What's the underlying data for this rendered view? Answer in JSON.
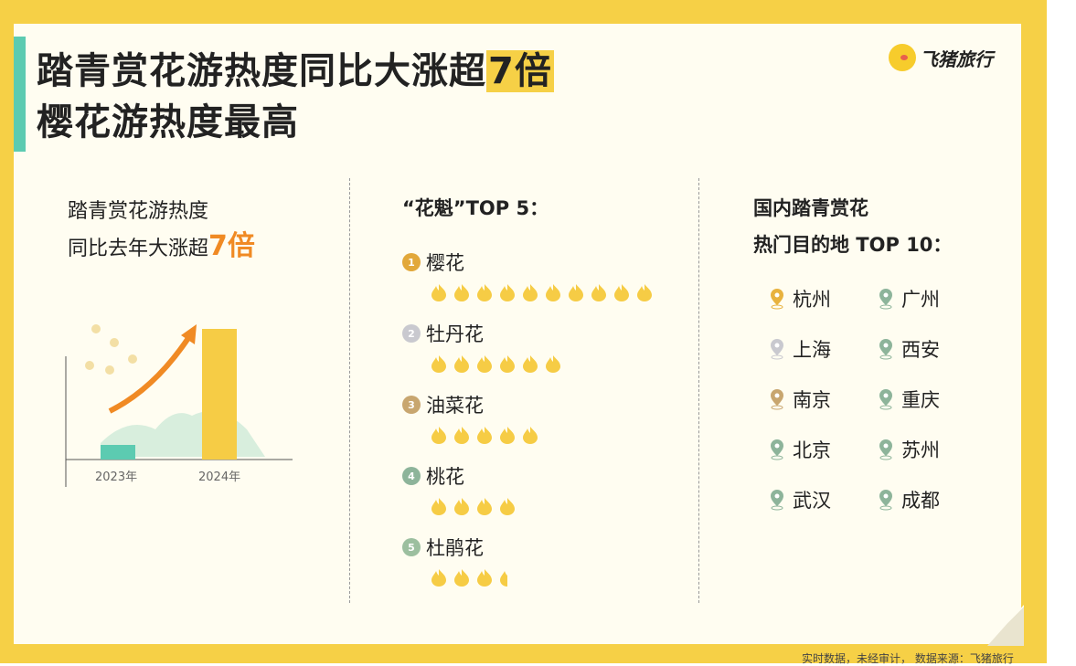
{
  "title": {
    "line1_prefix": "踏青赏花游热度同比大涨超",
    "line1_highlight": "7倍",
    "line2": "樱花游热度最高"
  },
  "brand": {
    "name": "飞猪旅行"
  },
  "colors": {
    "background": "#f6d046",
    "card": "#fffdf1",
    "accent": "#5ccbb1",
    "highlight": "#f08a24",
    "flame": "#f6cc45"
  },
  "growth": {
    "line1": "踏青赏花游热度",
    "line2_prefix": "同比去年大涨超",
    "line2_value": "7倍",
    "years": [
      "2023年",
      "2024年"
    ]
  },
  "top5": {
    "heading": "“花魁”TOP 5：",
    "items": [
      {
        "rank": "1",
        "name": "樱花",
        "heat": 10,
        "medal": "#e2a83a"
      },
      {
        "rank": "2",
        "name": "牡丹花",
        "heat": 6,
        "medal": "#c9c9cf"
      },
      {
        "rank": "3",
        "name": "油菜花",
        "heat": 5,
        "medal": "#c8a66f"
      },
      {
        "rank": "4",
        "name": "桃花",
        "heat": 4,
        "medal": "#8db49a"
      },
      {
        "rank": "5",
        "name": "杜鹃花",
        "heat": 3.5,
        "medal": "#9cbf9f"
      }
    ]
  },
  "destinations": {
    "heading1": "国内踏青赏花",
    "heading2": "热门目的地 TOP 10：",
    "left": [
      "杭州",
      "上海",
      "南京",
      "北京",
      "武汉"
    ],
    "right": [
      "广州",
      "西安",
      "重庆",
      "苏州",
      "成都"
    ]
  },
  "footer": "实时数据，未经审计，  数据来源：飞猪旅行"
}
